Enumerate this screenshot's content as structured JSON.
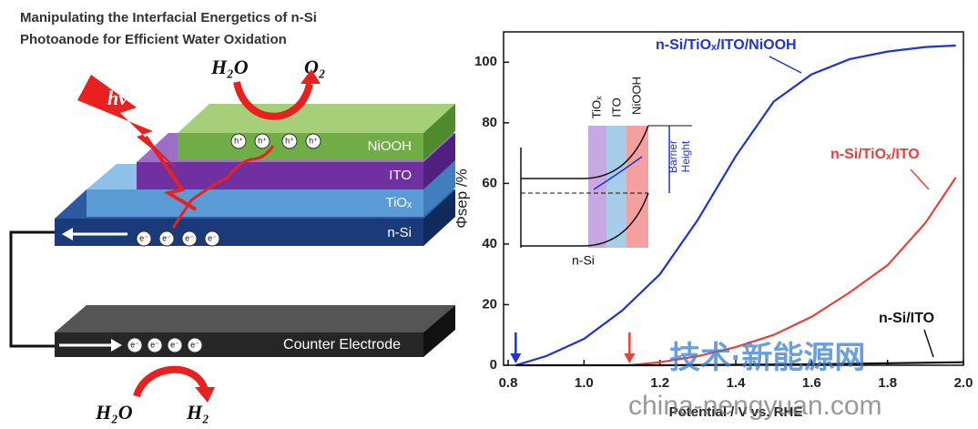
{
  "schematic": {
    "title": [
      "Manipulating the Interfacial Energetics of n-Si",
      "Photoanode for Efficient Water Oxidation"
    ],
    "hv": "hv",
    "top_reactant": "H₂O",
    "top_product": "O₂",
    "bottom_reactant": "H₂O",
    "bottom_product": "H₂",
    "layers": [
      "NiOOH",
      "ITO",
      "TiOₓ",
      "n-Si"
    ],
    "counter_electrode": "Counter Electrode",
    "hole": "h⁺",
    "electron": "e⁻"
  },
  "inset": {
    "layers": [
      "TiOₓ",
      "ITO",
      "NiOOH"
    ],
    "substrate": "n-Si",
    "barrier": [
      "Barrier",
      "Height"
    ]
  },
  "watermark": [
    "技术·新能源网",
    "china-nengyuan.com"
  ],
  "chart_data": {
    "type": "line",
    "xlabel": "Potential / V vs. RHE",
    "ylabel": "Φsep /%",
    "xlim": [
      0.8,
      2.0
    ],
    "xticks": [
      0.8,
      {
        "value": 1,
        "label": "1.0"
      },
      1.2,
      1.4,
      1.6,
      1.8,
      {
        "value": 2,
        "label": "2.0"
      }
    ],
    "ylim": [
      0,
      110
    ],
    "yticks": [
      0,
      20,
      40,
      60,
      80,
      100
    ],
    "series": [
      {
        "name": "n-Si/TiOₓ/ITO/NiOOH",
        "color": "#1f32d6",
        "x": [
          0.82,
          0.9,
          1.0,
          1.1,
          1.2,
          1.3,
          1.4,
          1.5,
          1.6,
          1.7,
          1.8,
          1.9,
          1.98
        ],
        "values": [
          0,
          3,
          8.7,
          18,
          30,
          48,
          69,
          87,
          96,
          101,
          103.5,
          105,
          105.5
        ]
      },
      {
        "name": "n-Si/TiOₓ/ITO",
        "color": "#e8403a",
        "x": [
          1.12,
          1.2,
          1.3,
          1.4,
          1.5,
          1.6,
          1.7,
          1.8,
          1.9,
          1.98
        ],
        "values": [
          0,
          1,
          3,
          6,
          10,
          16,
          24,
          33,
          47,
          62
        ]
      },
      {
        "name": "n-Si/ITO",
        "color": "#111111",
        "x": [
          0.82,
          1.2,
          1.6,
          2.0
        ],
        "values": [
          0,
          0,
          0.3,
          1
        ]
      }
    ],
    "markers": [
      {
        "x": 0.82,
        "color": "#1f32d6"
      },
      {
        "x": 1.12,
        "color": "#e8403a"
      }
    ]
  }
}
